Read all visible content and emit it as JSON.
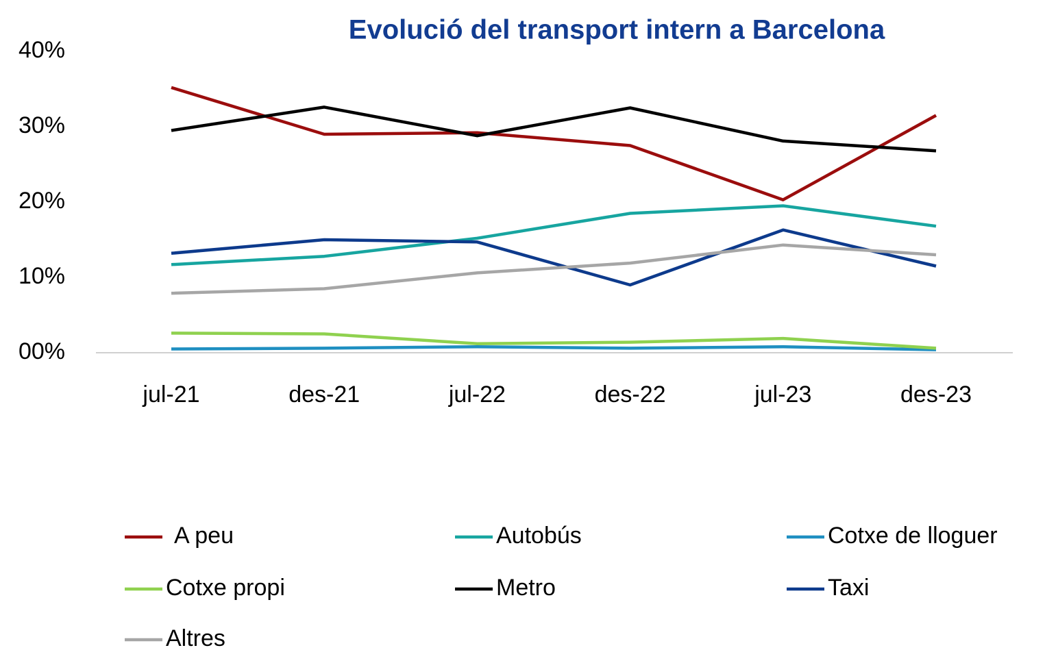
{
  "chart_data": {
    "type": "line",
    "title": "Evolució del transport intern a Barcelona",
    "categories": [
      "jul-21",
      "des-21",
      "jul-22",
      "des-22",
      "jul-23",
      "des-23"
    ],
    "series": [
      {
        "name": "A peu",
        "color": "#9b0d0d",
        "values": [
          35.2,
          29.0,
          29.2,
          27.5,
          20.3,
          31.5
        ]
      },
      {
        "name": "Autobús",
        "color": "#17a5a0",
        "values": [
          11.7,
          12.8,
          15.2,
          18.5,
          19.5,
          16.8
        ]
      },
      {
        "name": "Cotxe de lloguer",
        "color": "#1f8fc1",
        "values": [
          0.5,
          0.6,
          0.8,
          0.6,
          0.8,
          0.4
        ]
      },
      {
        "name": "Cotxe propi",
        "color": "#8fd14f",
        "values": [
          2.6,
          2.5,
          1.2,
          1.4,
          1.9,
          0.6
        ]
      },
      {
        "name": "Metro",
        "color": "#000000",
        "values": [
          29.5,
          32.6,
          28.8,
          32.5,
          28.1,
          26.8
        ]
      },
      {
        "name": "Taxi",
        "color": "#0d3a8c",
        "values": [
          13.2,
          15.0,
          14.7,
          9.0,
          16.3,
          11.5
        ]
      },
      {
        "name": "Altres",
        "color": "#a6a6a6",
        "values": [
          7.9,
          8.5,
          10.6,
          11.9,
          14.3,
          13.0
        ]
      }
    ],
    "ylim": [
      0,
      40
    ],
    "yticks": [
      {
        "value": 0,
        "label": "00%"
      },
      {
        "value": 10,
        "label": "10%"
      },
      {
        "value": 20,
        "label": "20%"
      },
      {
        "value": 30,
        "label": "30%"
      },
      {
        "value": 40,
        "label": "40%"
      }
    ],
    "grid": false,
    "legend": "bottom"
  }
}
